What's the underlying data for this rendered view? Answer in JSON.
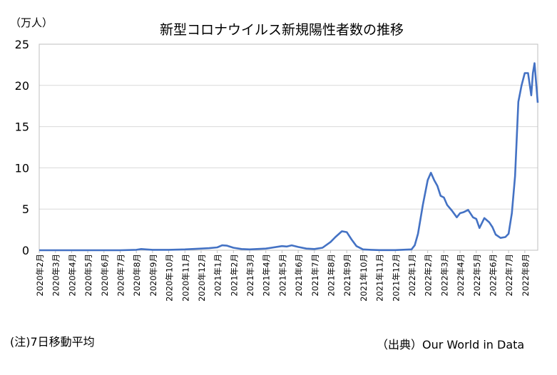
{
  "notes": {
    "left": "(注)7日移動平均",
    "right": "（出典）Our World in Data"
  },
  "chart_data": {
    "type": "line",
    "title": "新型コロナウイルス新規陽性者数の推移",
    "unit_label": "（万人）",
    "xlabel": "",
    "ylabel": "",
    "ylim": [
      0,
      25
    ],
    "yticks": [
      0,
      5,
      10,
      15,
      20,
      25
    ],
    "grid": true,
    "legend": "none",
    "line_color": "#4472c4",
    "x_ticks": [
      "2020年2月",
      "2020年3月",
      "2020年4月",
      "2020年5月",
      "2020年6月",
      "2020年7月",
      "2020年8月",
      "2020年9月",
      "2020年10月",
      "2020年11月",
      "2020年12月",
      "2021年1月",
      "2021年2月",
      "2021年3月",
      "2021年4月",
      "2021年5月",
      "2021年6月",
      "2021年7月",
      "2021年8月",
      "2021年9月",
      "2021年10月",
      "2021年11月",
      "2021年12月",
      "2022年1月",
      "2022年2月",
      "2022年3月",
      "2022年4月",
      "2022年5月",
      "2022年6月",
      "2022年7月",
      "2022年8月"
    ],
    "xlim_months": [
      0,
      30.8
    ],
    "series": [
      {
        "x": [
          0,
          1,
          2,
          3,
          4,
          5,
          6,
          6.3,
          6.6,
          7,
          8,
          9,
          10,
          10.5,
          11,
          11.3,
          11.6,
          12,
          12.5,
          13,
          14,
          15,
          15.3,
          15.6,
          16,
          16.5,
          17,
          17.5,
          18,
          18.3,
          18.7,
          19,
          19.3,
          19.6,
          20,
          20.5,
          21,
          22,
          23,
          23.2,
          23.4,
          23.7,
          24,
          24.2,
          24.4,
          24.6,
          24.8,
          25,
          25.2,
          25.5,
          25.8,
          26,
          26.2,
          26.5,
          26.8,
          27,
          27.2,
          27.5,
          27.8,
          28,
          28.2,
          28.5,
          28.8,
          29,
          29.2,
          29.4,
          29.6,
          29.8,
          30,
          30.2,
          30.4,
          30.5,
          30.6,
          30.8
        ],
        "values": [
          0,
          0,
          0,
          0,
          0,
          0,
          0.05,
          0.15,
          0.1,
          0.05,
          0.05,
          0.1,
          0.2,
          0.25,
          0.35,
          0.6,
          0.55,
          0.3,
          0.15,
          0.1,
          0.2,
          0.5,
          0.45,
          0.6,
          0.4,
          0.2,
          0.15,
          0.3,
          1.0,
          1.6,
          2.3,
          2.2,
          1.3,
          0.5,
          0.1,
          0.05,
          0.02,
          0.02,
          0.1,
          0.6,
          2.0,
          5.5,
          8.5,
          9.4,
          8.5,
          7.8,
          6.6,
          6.4,
          5.5,
          4.8,
          4.0,
          4.5,
          4.6,
          4.9,
          4.0,
          3.8,
          2.7,
          3.9,
          3.4,
          2.8,
          1.9,
          1.5,
          1.6,
          2.0,
          4.5,
          9.0,
          18.0,
          20.0,
          21.5,
          21.5,
          18.8,
          21.5,
          22.7,
          17.9
        ]
      }
    ]
  }
}
